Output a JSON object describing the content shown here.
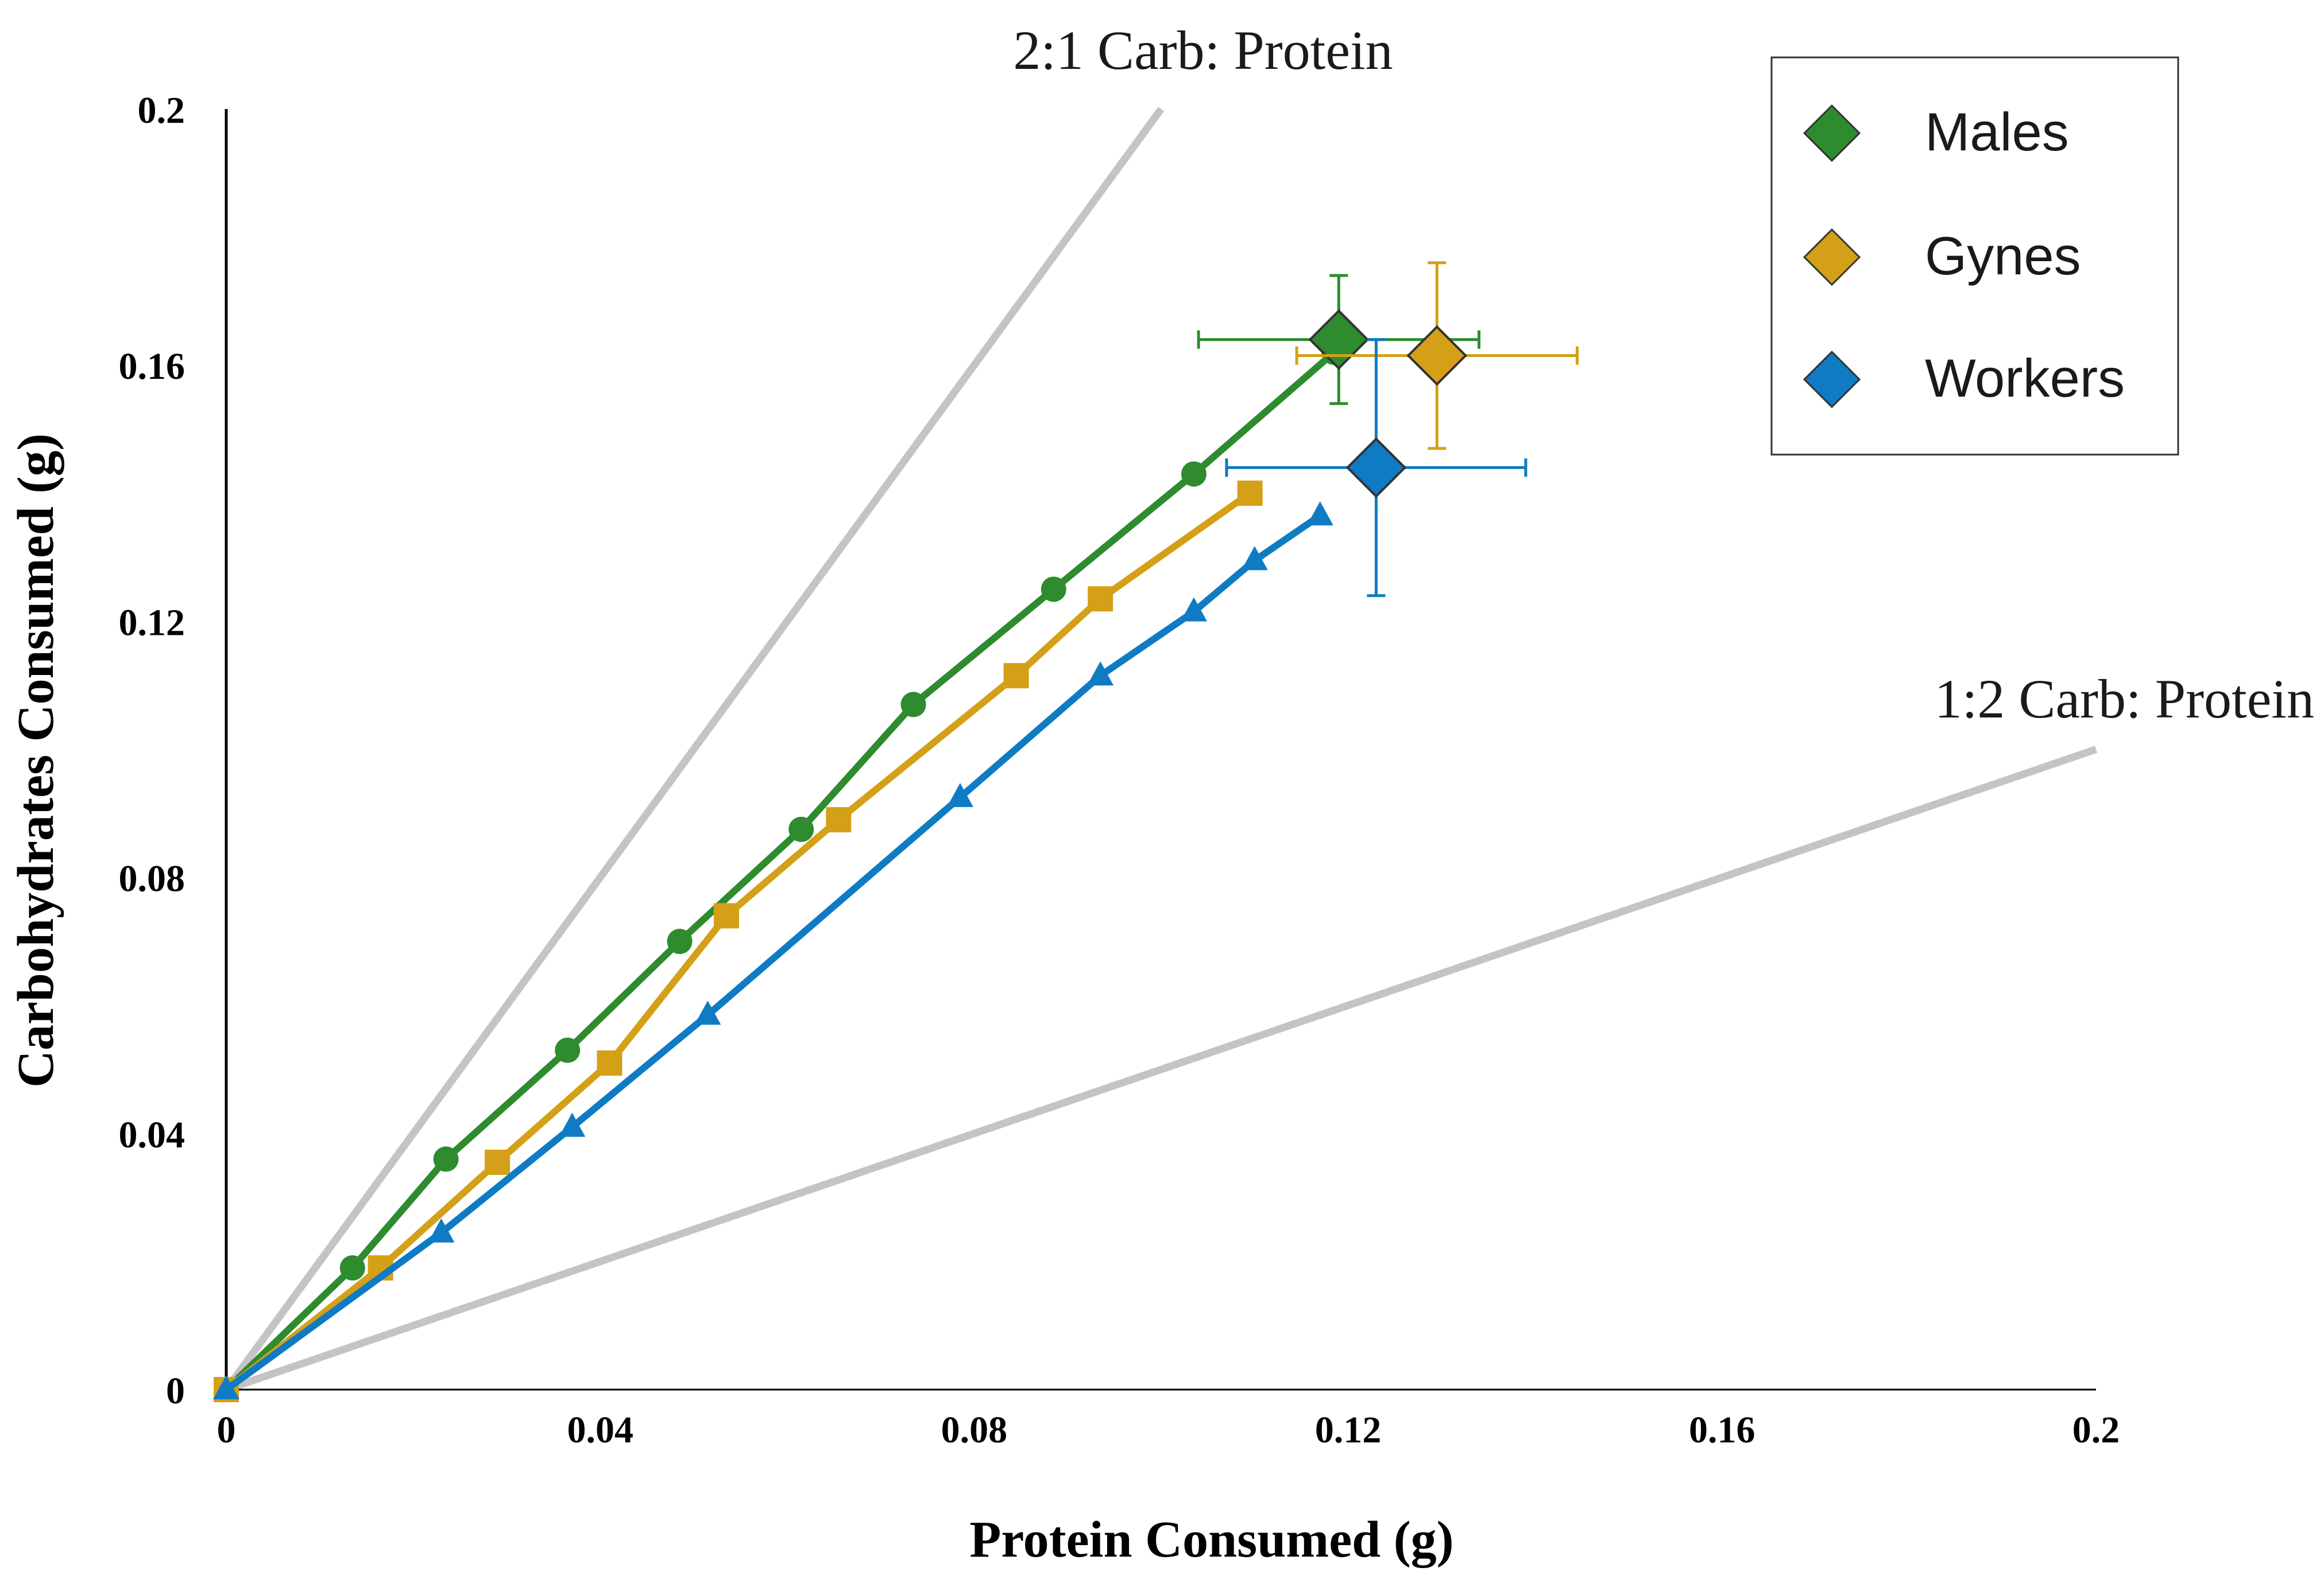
{
  "chart_data": {
    "type": "scatter",
    "xlabel": "Protein Consumed (g)",
    "ylabel": "Carbohydrates Consumed (g)",
    "xlim": [
      0,
      0.2
    ],
    "ylim": [
      0,
      0.2
    ],
    "x_ticks": [
      "0",
      "0.04",
      "0.08",
      "0.12",
      "0.16",
      "0.2"
    ],
    "y_ticks": [
      "0",
      "0.04",
      "0.08",
      "0.12",
      "0.16",
      "0.2"
    ],
    "grid": false,
    "legend_position": "top-right",
    "reference_lines": [
      {
        "label": "2:1 Carb: Protein",
        "slope": 2,
        "color": "#c4c4c4"
      },
      {
        "label": "1:2 Carb: Protein",
        "slope": 0.5,
        "color": "#c4c4c4"
      }
    ],
    "series": [
      {
        "name": "Males",
        "color": "#2e8b2e",
        "marker": "circle",
        "x": [
          0,
          0.0135,
          0.0235,
          0.0365,
          0.0485,
          0.0615,
          0.0735,
          0.0885,
          0.1035,
          0.1185
        ],
        "y": [
          0,
          0.019,
          0.036,
          0.053,
          0.07,
          0.0875,
          0.107,
          0.125,
          0.143,
          0.162
        ],
        "mean": {
          "x": 0.119,
          "y": 0.164,
          "x_err": 0.015,
          "y_err": 0.01
        }
      },
      {
        "name": "Gynes",
        "color": "#d4a017",
        "marker": "square",
        "x": [
          0,
          0.0165,
          0.029,
          0.041,
          0.0535,
          0.0655,
          0.0845,
          0.0935,
          0.1095
        ],
        "y": [
          0,
          0.019,
          0.0355,
          0.051,
          0.074,
          0.089,
          0.1115,
          0.1235,
          0.14
        ],
        "mean": {
          "x": 0.1295,
          "y": 0.1615,
          "x_err": 0.015,
          "y_err": 0.0145
        }
      },
      {
        "name": "Workers",
        "color": "#0e7bc4",
        "marker": "triangle",
        "x": [
          0,
          0.023,
          0.037,
          0.0515,
          0.0785,
          0.0935,
          0.1035,
          0.11,
          0.117
        ],
        "y": [
          0,
          0.0245,
          0.041,
          0.0585,
          0.0925,
          0.1115,
          0.1215,
          0.1295,
          0.1365
        ],
        "mean": {
          "x": 0.123,
          "y": 0.144,
          "x_err": 0.016,
          "y_err": 0.02
        }
      }
    ]
  }
}
